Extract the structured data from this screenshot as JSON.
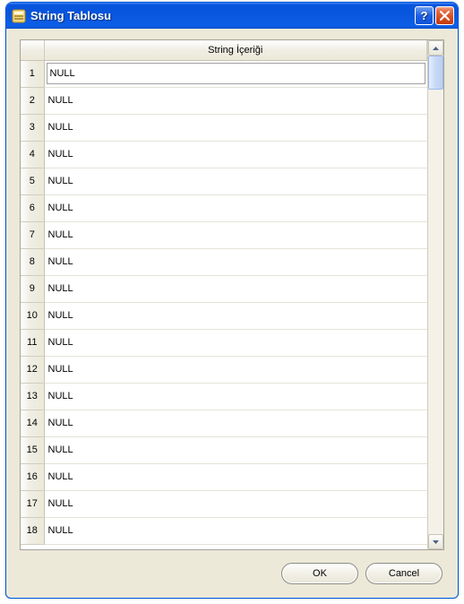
{
  "window": {
    "title": "String Tablosu",
    "titlebar_gradient": [
      "#3f8cf3",
      "#0855dd",
      "#074ac7"
    ],
    "help_label": "?",
    "close_label": "X"
  },
  "table": {
    "header": "String İçeriği",
    "rows": [
      {
        "n": "1",
        "value": "NULL",
        "selected": true
      },
      {
        "n": "2",
        "value": "NULL",
        "selected": false
      },
      {
        "n": "3",
        "value": "NULL",
        "selected": false
      },
      {
        "n": "4",
        "value": "NULL",
        "selected": false
      },
      {
        "n": "5",
        "value": "NULL",
        "selected": false
      },
      {
        "n": "6",
        "value": "NULL",
        "selected": false
      },
      {
        "n": "7",
        "value": "NULL",
        "selected": false
      },
      {
        "n": "8",
        "value": "NULL",
        "selected": false
      },
      {
        "n": "9",
        "value": "NULL",
        "selected": false
      },
      {
        "n": "10",
        "value": "NULL",
        "selected": false
      },
      {
        "n": "11",
        "value": "NULL",
        "selected": false
      },
      {
        "n": "12",
        "value": "NULL",
        "selected": false
      },
      {
        "n": "13",
        "value": "NULL",
        "selected": false
      },
      {
        "n": "14",
        "value": "NULL",
        "selected": false
      },
      {
        "n": "15",
        "value": "NULL",
        "selected": false
      },
      {
        "n": "16",
        "value": "NULL",
        "selected": false
      },
      {
        "n": "17",
        "value": "NULL",
        "selected": false
      },
      {
        "n": "18",
        "value": "NULL",
        "selected": false
      }
    ]
  },
  "buttons": {
    "ok": "OK",
    "cancel": "Cancel"
  },
  "colors": {
    "dialog_bg": "#ece9d8",
    "border": "#a4a29d",
    "header_bg": "#ece9d8",
    "cell_border": "#e5e3d8",
    "scrollbar_thumb": "#c7d8f6"
  }
}
